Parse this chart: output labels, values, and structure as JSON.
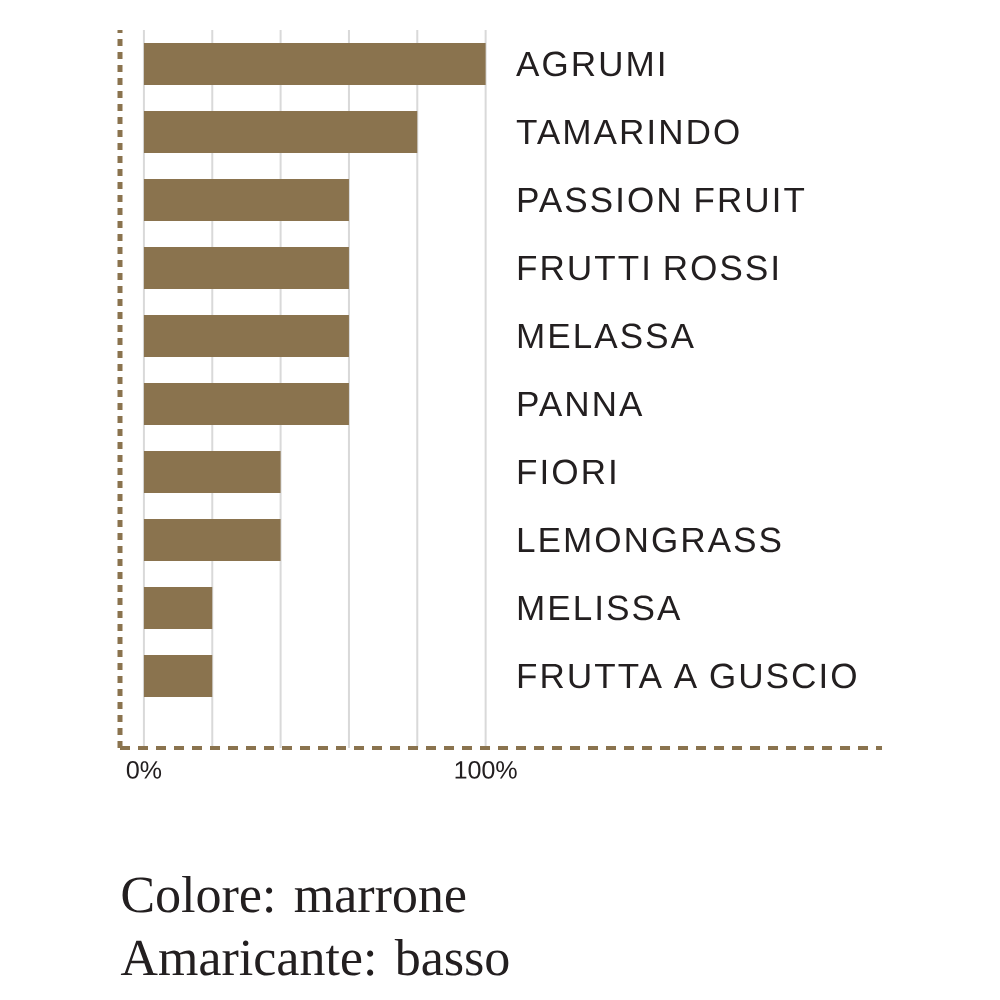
{
  "chart_data": {
    "type": "bar",
    "orientation": "horizontal",
    "categories": [
      "AGRUMI",
      "TAMARINDO",
      "PASSION FRUIT",
      "FRUTTI ROSSI",
      "MELASSA",
      "PANNA",
      "FIORI",
      "LEMONGRASS",
      "MELISSA",
      "FRUTTA A GUSCIO"
    ],
    "values": [
      100,
      80,
      60,
      60,
      60,
      60,
      40,
      40,
      20,
      20
    ],
    "color": "#8a734e",
    "xlim": [
      -7,
      216
    ],
    "xticks": [
      {
        "value": 0,
        "label": "0%"
      },
      {
        "value": 20,
        "label": null
      },
      {
        "value": 40,
        "label": null
      },
      {
        "value": 60,
        "label": null
      },
      {
        "value": 80,
        "label": null
      },
      {
        "value": 100,
        "label": "100%"
      }
    ],
    "grid": "x",
    "annotations": [
      "Colore: marrone",
      "Amaricante: basso"
    ]
  }
}
